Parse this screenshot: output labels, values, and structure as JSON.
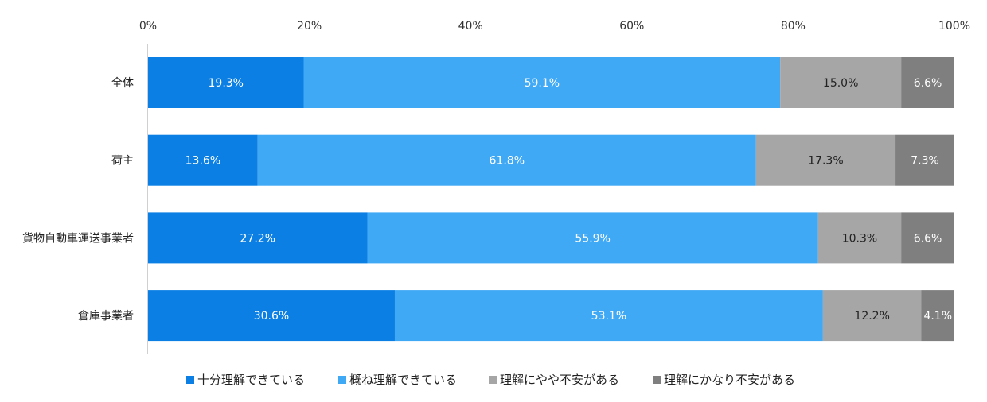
{
  "chart_data": {
    "type": "bar",
    "orientation": "horizontal",
    "stacked": true,
    "title": "",
    "xlabel": "",
    "ylabel": "",
    "xlim": [
      0,
      100
    ],
    "x_ticks": [
      "0%",
      "20%",
      "40%",
      "60%",
      "80%",
      "100%"
    ],
    "categories": [
      "全体",
      "荷主",
      "貨物自動車運送事業者",
      "倉庫事業者"
    ],
    "series": [
      {
        "name": "十分理解できている",
        "color": "#0B7FE3",
        "label_color": "#ffffff",
        "values": [
          19.3,
          13.6,
          27.2,
          30.6
        ]
      },
      {
        "name": "概ね理解できている",
        "color": "#40A9F6",
        "label_color": "#ffffff",
        "values": [
          59.1,
          61.8,
          55.9,
          53.1
        ]
      },
      {
        "name": "理解にやや不安がある",
        "color": "#A6A6A6",
        "label_color": "#222222",
        "values": [
          15.0,
          17.3,
          10.3,
          12.2
        ]
      },
      {
        "name": "理解にかなり不安がある",
        "color": "#7F7F7F",
        "label_color": "#ffffff",
        "values": [
          6.6,
          7.3,
          6.6,
          4.1
        ]
      }
    ],
    "legend_position": "bottom",
    "grid": false
  }
}
